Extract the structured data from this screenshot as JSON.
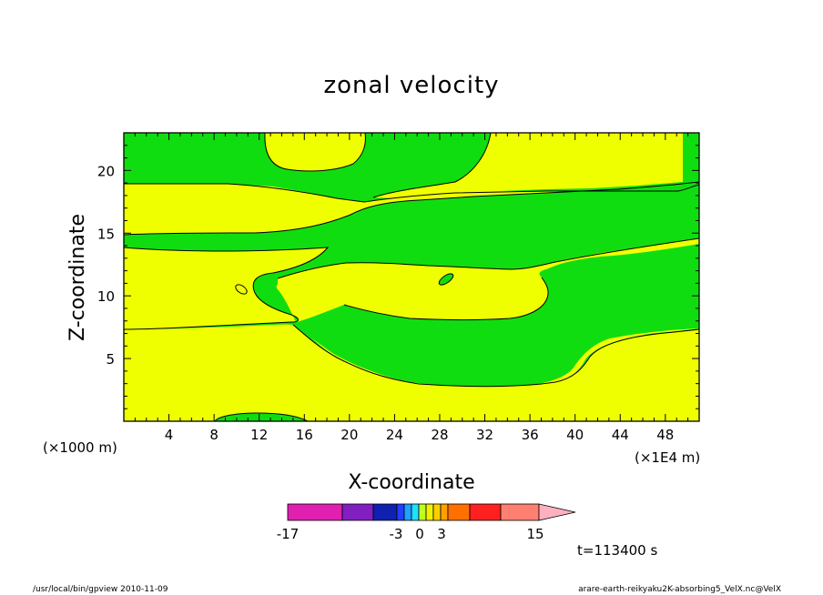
{
  "chart_data": {
    "type": "heatmap",
    "title": "zonal velocity",
    "xlabel": "X-coordinate",
    "ylabel": "Z-coordinate",
    "x_units_note": "(×1E4 m)",
    "y_units_note": "(×1000 m)",
    "xlim": [
      0,
      51
    ],
    "ylim": [
      0,
      23
    ],
    "x_ticks": [
      4,
      8,
      12,
      16,
      20,
      24,
      28,
      32,
      36,
      40,
      44,
      48
    ],
    "y_ticks": [
      5,
      10,
      15,
      20
    ],
    "colorbar": {
      "levels": [
        -17,
        -3,
        0,
        3,
        15
      ],
      "tick_labels": [
        "-17",
        "-3",
        "0",
        "3",
        "15"
      ],
      "colors": [
        "#e020b0",
        "#8020c0",
        "#1020b0",
        "#2040ff",
        "#20a0ff",
        "#20e0ff",
        "#c0ff20",
        "#f0f000",
        "#ffd000",
        "#ffa000",
        "#ff7000",
        "#ff2020",
        "#ff8070",
        "#ffb0c0"
      ]
    },
    "field_colors": {
      "positive_small": "#f0ff00",
      "negative_small": "#10dd10"
    },
    "time_label": "t=113400 s"
  },
  "footer": {
    "left": "/usr/local/bin/gpview   2010-11-09",
    "right": "arare-earth-reikyaku2K-absorbing5_VelX.nc@VelX"
  }
}
